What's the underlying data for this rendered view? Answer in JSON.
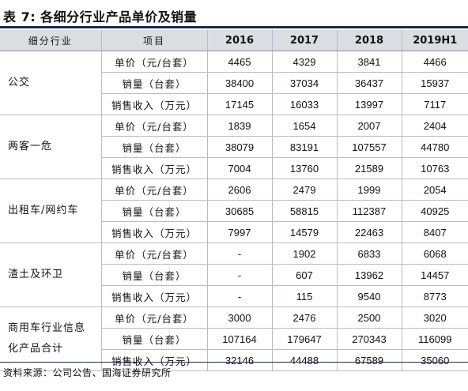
{
  "title": "表 7:  各细分行业产品单价及销量",
  "header": {
    "segment": "细分行业",
    "item": "项目",
    "years": [
      "2016",
      "2017",
      "2018",
      "2019H1"
    ]
  },
  "groups": [
    {
      "name": "公交",
      "rows": [
        {
          "item": "单价（元/台套）",
          "values": [
            "4465",
            "4329",
            "3841",
            "4466"
          ]
        },
        {
          "item": "销量（台套）",
          "values": [
            "38400",
            "37034",
            "36437",
            "15937"
          ]
        },
        {
          "item": "销售收入（万元）",
          "values": [
            "17145",
            "16033",
            "13997",
            "7117"
          ]
        }
      ]
    },
    {
      "name": "两客一危",
      "rows": [
        {
          "item": "单价（元/台套）",
          "values": [
            "1839",
            "1654",
            "2007",
            "2404"
          ]
        },
        {
          "item": "销量（台套）",
          "values": [
            "38079",
            "83191",
            "107557",
            "44780"
          ]
        },
        {
          "item": "销售收入（万元）",
          "values": [
            "7004",
            "13760",
            "21589",
            "10763"
          ]
        }
      ]
    },
    {
      "name": "出租车/网约车",
      "rows": [
        {
          "item": "单价（元/台套）",
          "values": [
            "2606",
            "2479",
            "1999",
            "2054"
          ]
        },
        {
          "item": "销量（台套）",
          "values": [
            "30685",
            "58815",
            "112387",
            "40925"
          ]
        },
        {
          "item": "销售收入（万元）",
          "values": [
            "7997",
            "14579",
            "22463",
            "8407"
          ]
        }
      ]
    },
    {
      "name": "渣土及环卫",
      "rows": [
        {
          "item": "单价（元/台套）",
          "values": [
            "-",
            "1902",
            "6833",
            "6068"
          ]
        },
        {
          "item": "销量（台套）",
          "values": [
            "-",
            "607",
            "13962",
            "14457"
          ]
        },
        {
          "item": "销售收入（万元）",
          "values": [
            "-",
            "115",
            "9540",
            "8773"
          ]
        }
      ]
    },
    {
      "name": "商用车行业信息化产品合计",
      "rows": [
        {
          "item": "单价（元/台套）",
          "values": [
            "3000",
            "2476",
            "2500",
            "3020"
          ]
        },
        {
          "item": "销量（台套）",
          "values": [
            "107164",
            "179647",
            "270343",
            "116099"
          ]
        },
        {
          "item": "销售收入（万元）",
          "values": [
            "32146",
            "44488",
            "67589",
            "35060"
          ]
        }
      ]
    }
  ],
  "source": "资料来源：公司公告、国海证券研究所"
}
